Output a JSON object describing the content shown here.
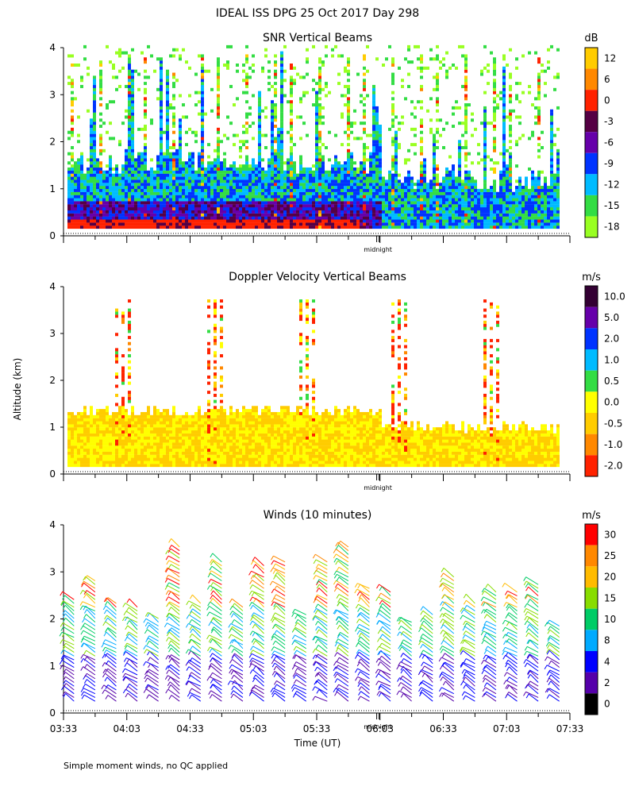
{
  "figure": {
    "title": "IDEAL ISS DPG  25 Oct 2017 Day 298",
    "footnote": "Simple moment winds, no QC applied",
    "shared_ylabel": "Altitude (km)",
    "shared_xlabel": "Time (UT)",
    "midnight_label": "midnight"
  },
  "chart_data": [
    {
      "type": "heatmap",
      "id": "snr",
      "title": "SNR Vertical Beams",
      "units": "dB",
      "ylim": [
        0,
        4
      ],
      "yticks": [
        0,
        1,
        2,
        3,
        4
      ],
      "xlim": [
        0,
        240
      ],
      "colorbar": {
        "labels": [
          "12",
          "6",
          "0",
          "-3",
          "-6",
          "-9",
          "-12",
          "-15",
          "-18"
        ],
        "colors": [
          "#ffcc00",
          "#ff8800",
          "#ff2200",
          "#550044",
          "#6600aa",
          "#0033ff",
          "#00bbff",
          "#33dd44",
          "#99ff22"
        ]
      }
    },
    {
      "type": "heatmap",
      "id": "doppler",
      "title": "Doppler Velocity Vertical Beams",
      "units": "m/s",
      "ylim": [
        0,
        4
      ],
      "yticks": [
        0,
        1,
        2,
        3,
        4
      ],
      "xlim": [
        0,
        240
      ],
      "colorbar": {
        "labels": [
          "10.0",
          "5.0",
          "2.0",
          "1.0",
          "0.5",
          "0.0",
          "-0.5",
          "-1.0",
          "-2.0"
        ],
        "colors": [
          "#330033",
          "#6600aa",
          "#0033ff",
          "#00bbff",
          "#33dd44",
          "#ffff00",
          "#ffcc00",
          "#ff8800",
          "#ff2200"
        ]
      }
    },
    {
      "type": "scatter",
      "id": "winds",
      "title": "Winds (10 minutes)",
      "units": "m/s",
      "ylim": [
        0,
        4
      ],
      "yticks": [
        0,
        1,
        2,
        3,
        4
      ],
      "xlim": [
        0,
        240
      ],
      "xtick_labels": [
        "03:33",
        "04:03",
        "04:33",
        "05:03",
        "05:33",
        "06:03",
        "06:33",
        "07:03",
        "07:33"
      ],
      "profile_minutes": [
        5,
        15,
        25,
        35,
        45,
        55,
        65,
        75,
        85,
        95,
        105,
        115,
        125,
        135,
        145,
        155,
        165,
        175,
        185,
        195,
        205,
        215,
        225,
        235
      ],
      "colorbar": {
        "labels": [
          "30",
          "25",
          "20",
          "15",
          "10",
          "8",
          "4",
          "2",
          "0"
        ],
        "colors": [
          "#ff0000",
          "#ff8800",
          "#ffbb00",
          "#88dd00",
          "#00cc66",
          "#00aaff",
          "#0000ff",
          "#5500aa",
          "#000000"
        ]
      }
    }
  ]
}
